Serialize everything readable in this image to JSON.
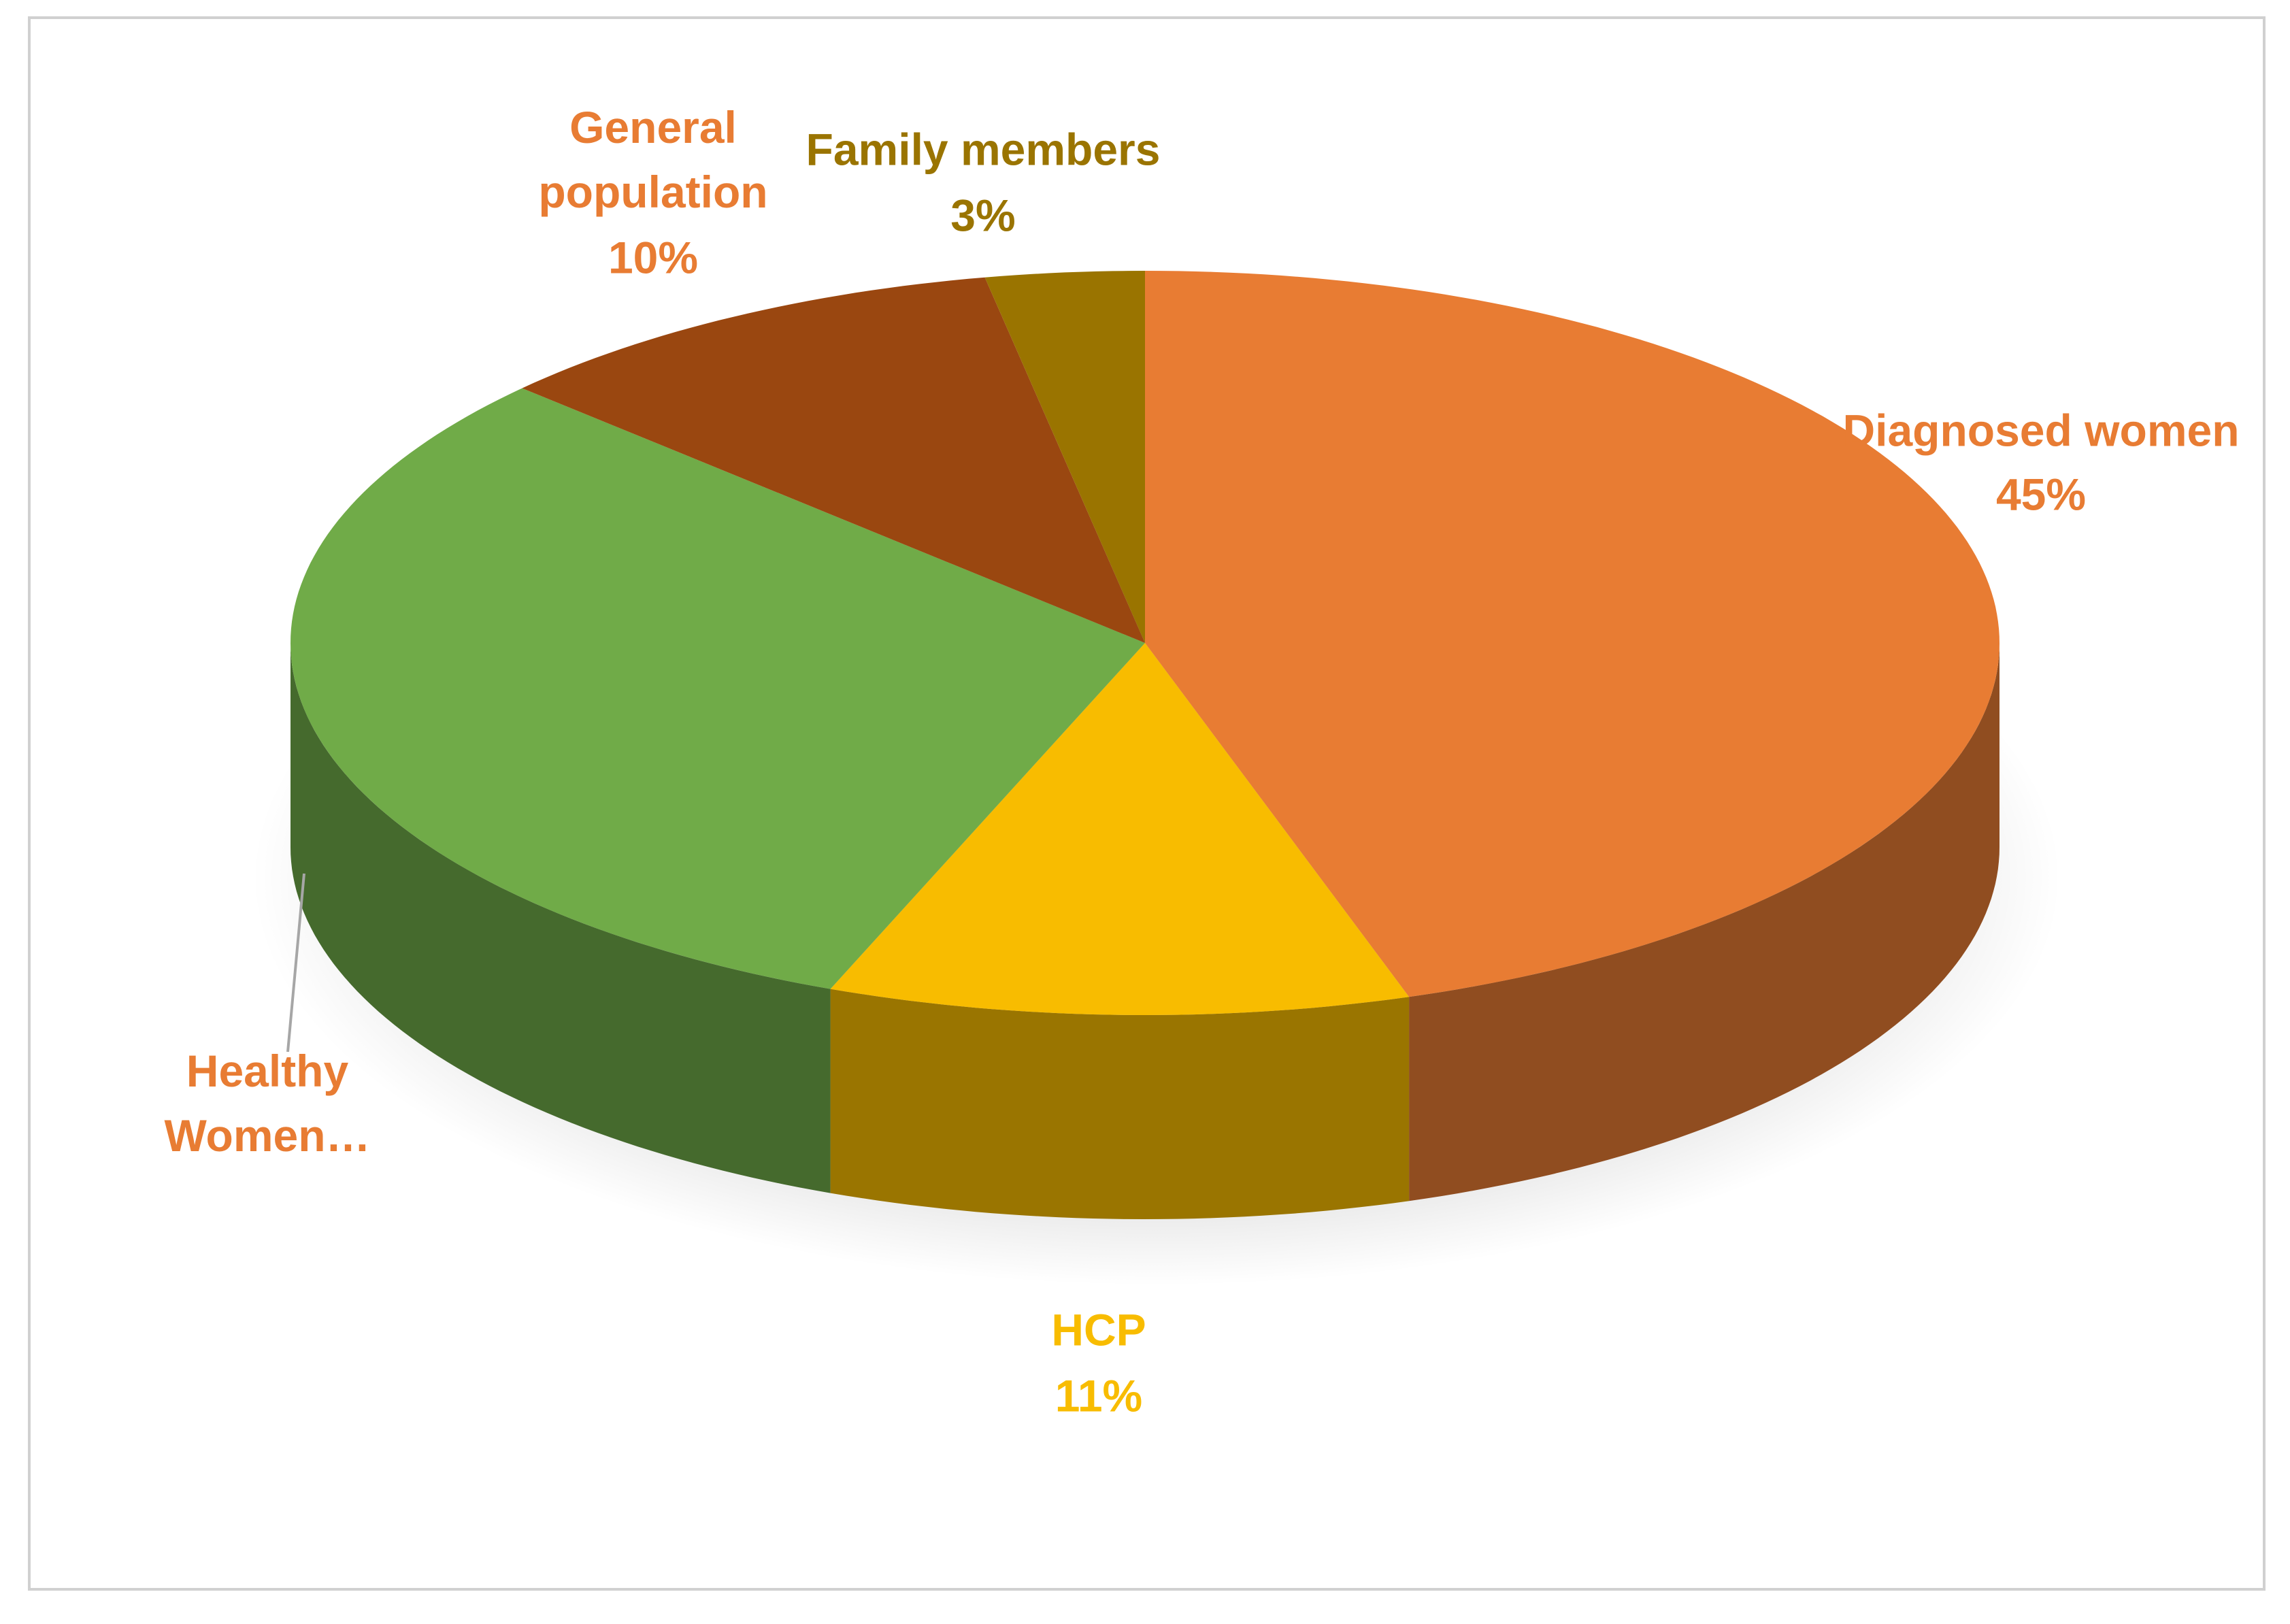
{
  "chart_data": {
    "type": "pie",
    "categories": [
      "Diagnosed women",
      "HCP",
      "Healthy Women…",
      "General population",
      "Family members"
    ],
    "values": [
      45,
      11,
      31,
      10,
      3
    ],
    "value_labels": [
      "45%",
      "11%",
      null,
      "10%",
      "3%"
    ],
    "colors": [
      "#E87C33",
      "#F8BC00",
      "#70AB48",
      "#9A4710",
      "#9A7400"
    ],
    "label_colors": [
      "#E87C33",
      "#F8BC00",
      "#E87C33",
      "#E87C33",
      "#9A7400"
    ],
    "three_d": true
  }
}
